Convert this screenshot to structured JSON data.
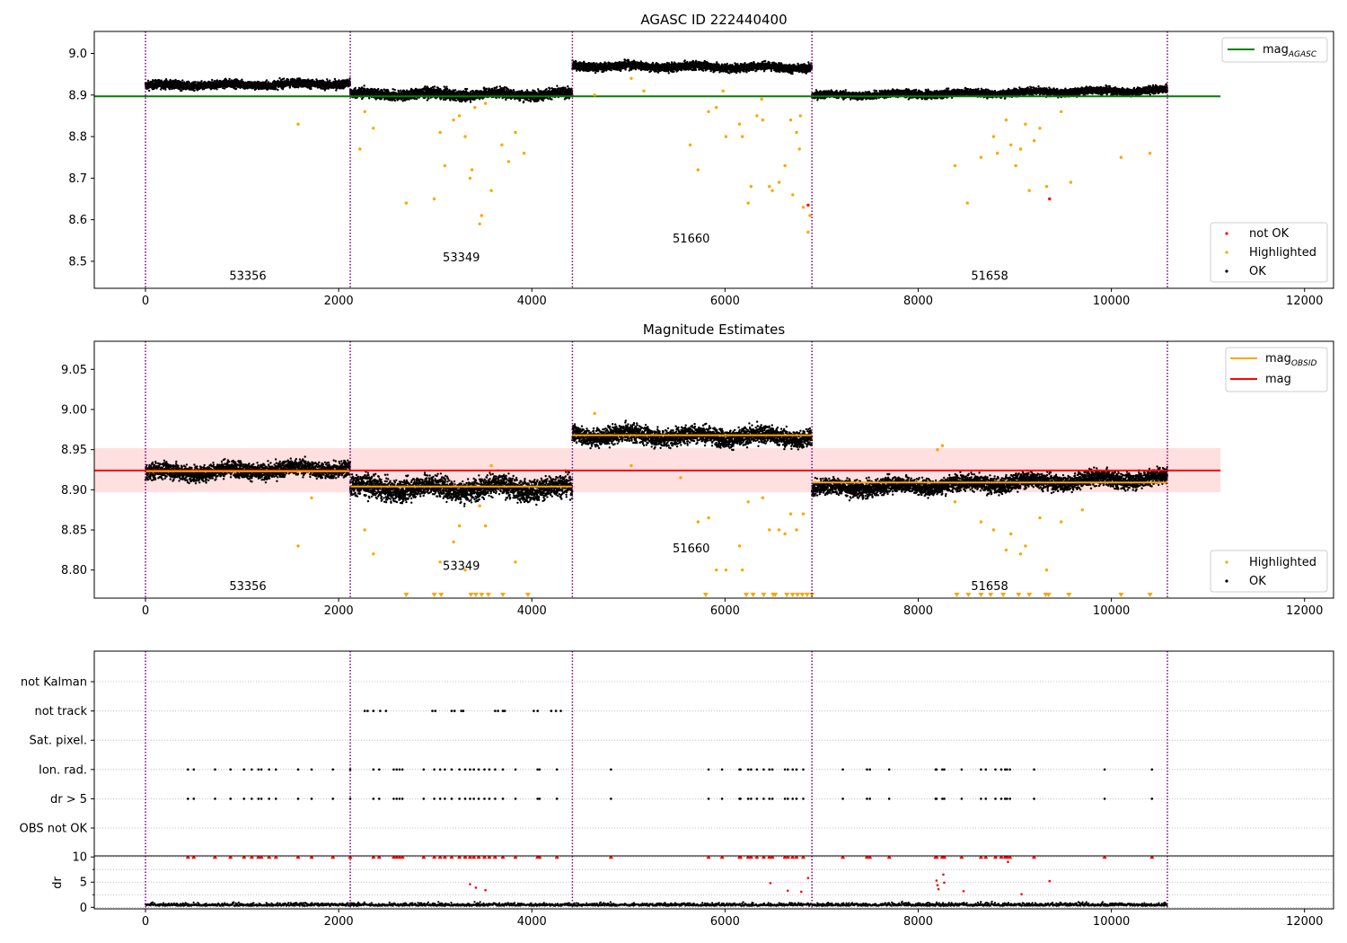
{
  "chart_data": [
    {
      "type": "scatter",
      "title": "AGASC ID 222440400",
      "xlim": [
        -530,
        12300
      ],
      "ylim": [
        8.435,
        9.053
      ],
      "xticks": [
        0,
        2000,
        4000,
        6000,
        8000,
        10000,
        12000
      ],
      "xtick_labels": [
        "0",
        "2000",
        "4000",
        "6000",
        "8000",
        "10000",
        "12000"
      ],
      "yticks": [
        8.5,
        8.6,
        8.7,
        8.8,
        8.9,
        9.0
      ],
      "ytick_labels": [
        "8.5",
        "8.6",
        "8.7",
        "8.8",
        "8.9",
        "9.0"
      ],
      "obs_boundaries": [
        0,
        2120,
        4420,
        6900,
        10580
      ],
      "obs_ids": [
        {
          "label": "53356",
          "x": 1060,
          "y": 8.455
        },
        {
          "label": "53349",
          "x": 3270,
          "y": 8.5
        },
        {
          "label": "51660",
          "x": 5650,
          "y": 8.545
        },
        {
          "label": "51658",
          "x": 8740,
          "y": 8.455
        }
      ],
      "lines": [
        {
          "name": "mag_AGASC",
          "x": [
            -530,
            11130
          ],
          "y": [
            8.897,
            8.897
          ],
          "color": "#008000"
        }
      ],
      "ok_segments": [
        {
          "x": [
            0,
            2120
          ],
          "center": 8.925,
          "spread": 0.009,
          "trend": 0.005
        },
        {
          "x": [
            2120,
            4420
          ],
          "center": 8.902,
          "spread": 0.011,
          "trend": 0.0
        },
        {
          "x": [
            4420,
            6900
          ],
          "center": 8.968,
          "spread": 0.009,
          "trend": -0.004
        },
        {
          "x": [
            6900,
            10580
          ],
          "center": 8.905,
          "spread": 0.008,
          "trend": 0.013
        }
      ],
      "series": [
        {
          "name": "OK",
          "color": "#000000"
        },
        {
          "name": "Highlighted",
          "color": "#ffa500",
          "x": [
            1580,
            2220,
            2270,
            2360,
            2700,
            2990,
            3050,
            3100,
            3190,
            3250,
            3310,
            3360,
            3380,
            3410,
            3460,
            3480,
            3520,
            3580,
            3690,
            3760,
            3830,
            3920,
            5640,
            5720,
            5830,
            5910,
            6010,
            6150,
            6180,
            6240,
            6270,
            6330,
            6380,
            6460,
            6490,
            6560,
            6620,
            6680,
            6700,
            6740,
            6770,
            6780,
            6810,
            6860,
            6880,
            8380,
            8510,
            8650,
            8780,
            8820,
            8910,
            8960,
            9010,
            9060,
            9110,
            9150,
            9200,
            9260,
            9330,
            9480,
            9580,
            10100,
            10400,
            5030,
            4650,
            5160,
            6390,
            5980
          ],
          "y": [
            8.83,
            8.77,
            8.86,
            8.82,
            8.64,
            8.65,
            8.81,
            8.73,
            8.84,
            8.85,
            8.8,
            8.7,
            8.72,
            8.87,
            8.59,
            8.61,
            8.88,
            8.67,
            8.78,
            8.74,
            8.81,
            8.76,
            8.78,
            8.72,
            8.86,
            8.87,
            8.8,
            8.83,
            8.8,
            8.64,
            8.68,
            8.85,
            8.89,
            8.68,
            8.67,
            8.69,
            8.73,
            8.84,
            8.66,
            8.81,
            8.77,
            8.85,
            8.63,
            8.57,
            8.61,
            8.73,
            8.64,
            8.75,
            8.8,
            8.76,
            8.84,
            8.78,
            8.73,
            8.77,
            8.83,
            8.67,
            8.79,
            8.82,
            8.68,
            8.86,
            8.69,
            8.75,
            8.76,
            8.94,
            8.9,
            8.91,
            8.84,
            8.91
          ]
        },
        {
          "name": "not OK",
          "color": "#ff0000",
          "x": [
            6860,
            9360
          ],
          "y": [
            8.635,
            8.65
          ]
        }
      ],
      "legend": [
        {
          "label": "mag",
          "sub": "AGASC",
          "marker": "line",
          "color": "#008000",
          "location": "upper right"
        },
        {
          "label": "not OK",
          "marker": "dot",
          "color": "#ff0000",
          "location": "lower right"
        },
        {
          "label": "Highlighted",
          "marker": "dot",
          "color": "#ffa500",
          "location": "lower right"
        },
        {
          "label": "OK",
          "marker": "dot",
          "color": "#000000",
          "location": "lower right"
        }
      ],
      "grid": false
    },
    {
      "type": "scatter",
      "title": "Magnitude Estimates",
      "xlim": [
        -530,
        12300
      ],
      "ylim": [
        8.765,
        9.085
      ],
      "xticks": [
        0,
        2000,
        4000,
        6000,
        8000,
        10000,
        12000
      ],
      "xtick_labels": [
        "0",
        "2000",
        "4000",
        "6000",
        "8000",
        "10000",
        "12000"
      ],
      "yticks": [
        8.8,
        8.85,
        8.9,
        8.95,
        9.0,
        9.05
      ],
      "ytick_labels": [
        "8.80",
        "8.85",
        "8.90",
        "8.95",
        "9.00",
        "9.05"
      ],
      "obs_boundaries": [
        0,
        2120,
        4420,
        6900,
        10580
      ],
      "obs_ids": [
        {
          "label": "53356",
          "x": 1060,
          "y": 8.775
        },
        {
          "label": "53349",
          "x": 3270,
          "y": 8.8
        },
        {
          "label": "51660",
          "x": 5650,
          "y": 8.822
        },
        {
          "label": "51658",
          "x": 8740,
          "y": 8.775
        }
      ],
      "lines": [
        {
          "name": "mag",
          "x": [
            -530,
            11130
          ],
          "y": [
            8.924,
            8.924
          ],
          "color": "#ff0000"
        },
        {
          "name": "mag_OBSID",
          "x": [
            0,
            2120
          ],
          "y": [
            8.923,
            8.923
          ],
          "color": "#ffa500"
        },
        {
          "name": "mag_OBSID",
          "x": [
            2120,
            4420
          ],
          "y": [
            8.904,
            8.904
          ],
          "color": "#ffa500"
        },
        {
          "name": "mag_OBSID",
          "x": [
            4420,
            6900
          ],
          "y": [
            8.968,
            8.968
          ],
          "color": "#ffa500"
        },
        {
          "name": "mag_OBSID",
          "x": [
            6900,
            10580
          ],
          "y": [
            8.909,
            8.909
          ],
          "color": "#ffa500"
        }
      ],
      "band": {
        "x": [
          -530,
          11130
        ],
        "y": [
          8.897,
          8.952
        ],
        "color": "#ff0000",
        "opacity": 0.12
      },
      "ok_segments": [
        {
          "x": [
            0,
            2120
          ],
          "center": 8.924,
          "spread": 0.009,
          "trend": 0.006
        },
        {
          "x": [
            2120,
            4420
          ],
          "center": 8.902,
          "spread": 0.012,
          "trend": 0.0
        },
        {
          "x": [
            4420,
            6900
          ],
          "center": 8.967,
          "spread": 0.01,
          "trend": -0.003
        },
        {
          "x": [
            6900,
            10580
          ],
          "center": 8.908,
          "spread": 0.009,
          "trend": 0.014
        }
      ],
      "series": [
        {
          "name": "OK",
          "color": "#000000"
        },
        {
          "name": "Highlighted",
          "color": "#ffa500",
          "x": [
            1580,
            1720,
            2270,
            2360,
            3050,
            3190,
            3250,
            3310,
            3460,
            3520,
            3580,
            3830,
            5030,
            5540,
            5720,
            5830,
            5910,
            6010,
            6150,
            6180,
            6240,
            6390,
            6460,
            6560,
            6620,
            6680,
            6740,
            6810,
            8380,
            8650,
            8780,
            8910,
            8960,
            9060,
            9110,
            9260,
            9330,
            9480,
            9700,
            8200,
            8250,
            4650
          ],
          "y": [
            8.83,
            8.89,
            8.85,
            8.82,
            8.81,
            8.835,
            8.855,
            8.8,
            8.88,
            8.855,
            8.93,
            8.81,
            8.93,
            8.915,
            8.86,
            8.865,
            8.8,
            8.8,
            8.83,
            8.8,
            8.885,
            8.89,
            8.85,
            8.85,
            8.845,
            8.87,
            8.85,
            8.87,
            8.885,
            8.86,
            8.85,
            8.825,
            8.845,
            8.82,
            8.83,
            8.865,
            8.8,
            8.86,
            8.875,
            8.95,
            8.955,
            8.995
          ]
        },
        {
          "name": "Highlighted (below axis)",
          "color": "#ffa500",
          "x": [
            2700,
            2990,
            3060,
            3370,
            3420,
            3480,
            3550,
            3700,
            3960,
            5800,
            6220,
            6290,
            6400,
            6500,
            6520,
            6640,
            6700,
            6750,
            6800,
            6850,
            6900,
            8400,
            8520,
            8650,
            8750,
            8880,
            9040,
            9150,
            9320,
            9350,
            9560,
            10100,
            10400
          ],
          "y": [
            8.765,
            8.765,
            8.765,
            8.765,
            8.765,
            8.765,
            8.765,
            8.765,
            8.765,
            8.765,
            8.765,
            8.765,
            8.765,
            8.765,
            8.765,
            8.765,
            8.765,
            8.765,
            8.765,
            8.765,
            8.765,
            8.765,
            8.765,
            8.765,
            8.765,
            8.765,
            8.765,
            8.765,
            8.765,
            8.765,
            8.765,
            8.765,
            8.765
          ]
        }
      ],
      "legend": [
        {
          "label": "mag",
          "sub": "OBSID",
          "marker": "line",
          "color": "#ffa500",
          "location": "upper right"
        },
        {
          "label": "mag",
          "marker": "line",
          "color": "#ff0000",
          "location": "upper right"
        },
        {
          "label": "Highlighted",
          "marker": "dot",
          "color": "#ffa500",
          "location": "lower right"
        },
        {
          "label": "OK",
          "marker": "dot",
          "color": "#000000",
          "location": "lower right"
        }
      ],
      "grid": false
    },
    {
      "type": "scatter",
      "title": "",
      "xlim": [
        -530,
        12300
      ],
      "categories": [
        "not Kalman",
        "not track",
        "Sat. pixel.",
        "Ion. rad.",
        "dr > 5",
        "OBS not OK"
      ],
      "obs_boundaries": [
        0,
        2120,
        4420,
        6900,
        10580
      ],
      "flags": {
        "not track": [
          2270,
          2300,
          2360,
          2430,
          2490,
          2970,
          3000,
          3170,
          3200,
          3270,
          3290,
          3620,
          3650,
          3700,
          3720,
          4020,
          4060,
          4200,
          4250,
          4300
        ],
        "Ion. rad.": [
          440,
          500,
          720,
          880,
          1020,
          1100,
          1170,
          1200,
          1280,
          1350,
          1580,
          1720,
          1940,
          2120,
          2360,
          2420,
          2570,
          2600,
          2630,
          2660,
          2880,
          2990,
          3050,
          3100,
          3170,
          3250,
          3310,
          3360,
          3400,
          3450,
          3510,
          3560,
          3620,
          3700,
          3830,
          4060,
          4080,
          4260,
          4820,
          5830,
          5970,
          6150,
          6160,
          6240,
          6270,
          6330,
          6400,
          6460,
          6490,
          6620,
          6650,
          6700,
          6740,
          6810,
          7220,
          7470,
          7500,
          7700,
          8180,
          8190,
          8250,
          8270,
          8450,
          8650,
          8700,
          8800,
          8860,
          8900,
          8920,
          8950,
          9200,
          9930,
          10420
        ],
        "dr > 5": [
          440,
          500,
          720,
          880,
          1020,
          1100,
          1170,
          1200,
          1280,
          1350,
          1580,
          1720,
          1940,
          2120,
          2360,
          2420,
          2570,
          2600,
          2630,
          2660,
          2880,
          2990,
          3050,
          3100,
          3170,
          3250,
          3310,
          3360,
          3400,
          3450,
          3510,
          3560,
          3620,
          3700,
          3830,
          4060,
          4080,
          4260,
          4820,
          5830,
          5970,
          6150,
          6160,
          6240,
          6270,
          6330,
          6400,
          6460,
          6490,
          6620,
          6650,
          6700,
          6740,
          6810,
          7220,
          7470,
          7500,
          7700,
          8180,
          8190,
          8250,
          8270,
          8450,
          8650,
          8700,
          8800,
          8860,
          8900,
          8920,
          8950,
          9200,
          9930,
          10420
        ]
      }
    },
    {
      "type": "scatter",
      "title": "",
      "xlim": [
        -530,
        12300
      ],
      "ylim": [
        -0.3,
        10.2
      ],
      "ylabel": "dr",
      "xticks": [
        0,
        2000,
        4000,
        6000,
        8000,
        10000,
        12000
      ],
      "xtick_labels": [
        "0",
        "2000",
        "4000",
        "6000",
        "8000",
        "10000",
        "12000"
      ],
      "yticks": [
        0,
        5,
        10
      ],
      "ytick_labels": [
        "0",
        "5",
        "10"
      ],
      "minor_yticks": [
        2.5,
        7.5
      ],
      "obs_boundaries": [
        0,
        2120,
        4420,
        6900,
        10580
      ],
      "series": [
        {
          "name": "dr OK",
          "color": "#000000",
          "baseline": 0.3,
          "spread": 0.35
        },
        {
          "name": "dr capped",
          "color": "#ff0000",
          "marker": "triangle",
          "value": 10
        },
        {
          "name": "dr elevated",
          "color": "#ff0000",
          "x": [
            3360,
            3420,
            3520,
            6470,
            6650,
            6790,
            6860,
            8190,
            8200,
            8210,
            8260,
            8270,
            8470,
            9360,
            9070,
            8930
          ],
          "y": [
            4.6,
            3.9,
            3.4,
            4.8,
            3.3,
            3.1,
            5.8,
            5.3,
            4.4,
            3.6,
            6.5,
            4.9,
            3.2,
            5.2,
            2.6,
            9.0
          ]
        }
      ],
      "grid": "horizontal dotted"
    }
  ]
}
